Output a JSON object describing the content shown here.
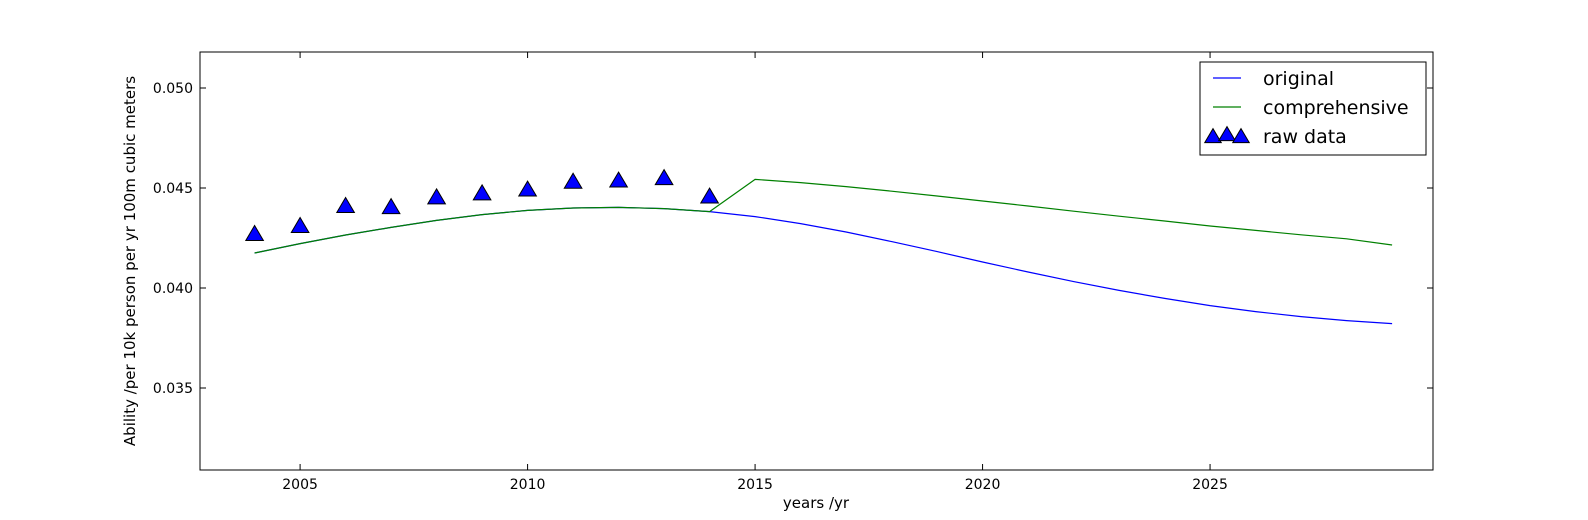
{
  "chart_data": {
    "type": "line",
    "title": "",
    "xlabel": "years /yr",
    "ylabel": "Ability /per 10k person per yr 100m cubic meters",
    "xlim": [
      2002.8,
      2029.9
    ],
    "ylim": [
      0.0309,
      0.0518
    ],
    "xticks": [
      2005,
      2010,
      2015,
      2020,
      2025
    ],
    "yticks": [
      0.035,
      0.04,
      0.045,
      0.05
    ],
    "xtick_labels": [
      "2005",
      "2010",
      "2015",
      "2020",
      "2025"
    ],
    "ytick_labels": [
      "0.035",
      "0.040",
      "0.045",
      "0.050"
    ],
    "grid": false,
    "legend_position": "top-right",
    "series": [
      {
        "name": "original",
        "kind": "line",
        "color": "#0000ff",
        "x": [
          2004,
          2005,
          2006,
          2007,
          2008,
          2009,
          2010,
          2011,
          2012,
          2013,
          2014,
          2015,
          2016,
          2017,
          2018,
          2019,
          2020,
          2021,
          2022,
          2023,
          2024,
          2025,
          2026,
          2027,
          2028,
          2029
        ],
        "y": [
          0.04175,
          0.04222,
          0.04265,
          0.04303,
          0.04338,
          0.04367,
          0.04388,
          0.044,
          0.04403,
          0.04397,
          0.04382,
          0.04357,
          0.04322,
          0.0428,
          0.04232,
          0.04182,
          0.0413,
          0.0408,
          0.04032,
          0.03988,
          0.03948,
          0.03912,
          0.03882,
          0.03857,
          0.03837,
          0.03822
        ]
      },
      {
        "name": "comprehensive",
        "kind": "line",
        "color": "#008000",
        "x": [
          2004,
          2005,
          2006,
          2007,
          2008,
          2009,
          2010,
          2011,
          2012,
          2013,
          2014,
          2015,
          2016,
          2017,
          2018,
          2019,
          2020,
          2021,
          2022,
          2023,
          2024,
          2025,
          2026,
          2027,
          2028,
          2029
        ],
        "y": [
          0.04175,
          0.04222,
          0.04265,
          0.04303,
          0.04338,
          0.04367,
          0.04388,
          0.044,
          0.04403,
          0.04397,
          0.04382,
          0.04543,
          0.04527,
          0.04507,
          0.04484,
          0.0446,
          0.04435,
          0.0441,
          0.04384,
          0.04359,
          0.04335,
          0.0431,
          0.04288,
          0.04266,
          0.04246,
          0.04215
        ]
      },
      {
        "name": "raw data",
        "kind": "scatter",
        "marker": "triangle",
        "color": "#0000ff",
        "x": [
          2004,
          2005,
          2006,
          2007,
          2008,
          2009,
          2010,
          2011,
          2012,
          2013,
          2014
        ],
        "y": [
          0.04268,
          0.04308,
          0.04408,
          0.04402,
          0.04451,
          0.04471,
          0.0449,
          0.04529,
          0.04535,
          0.04547,
          0.04455
        ]
      }
    ]
  }
}
